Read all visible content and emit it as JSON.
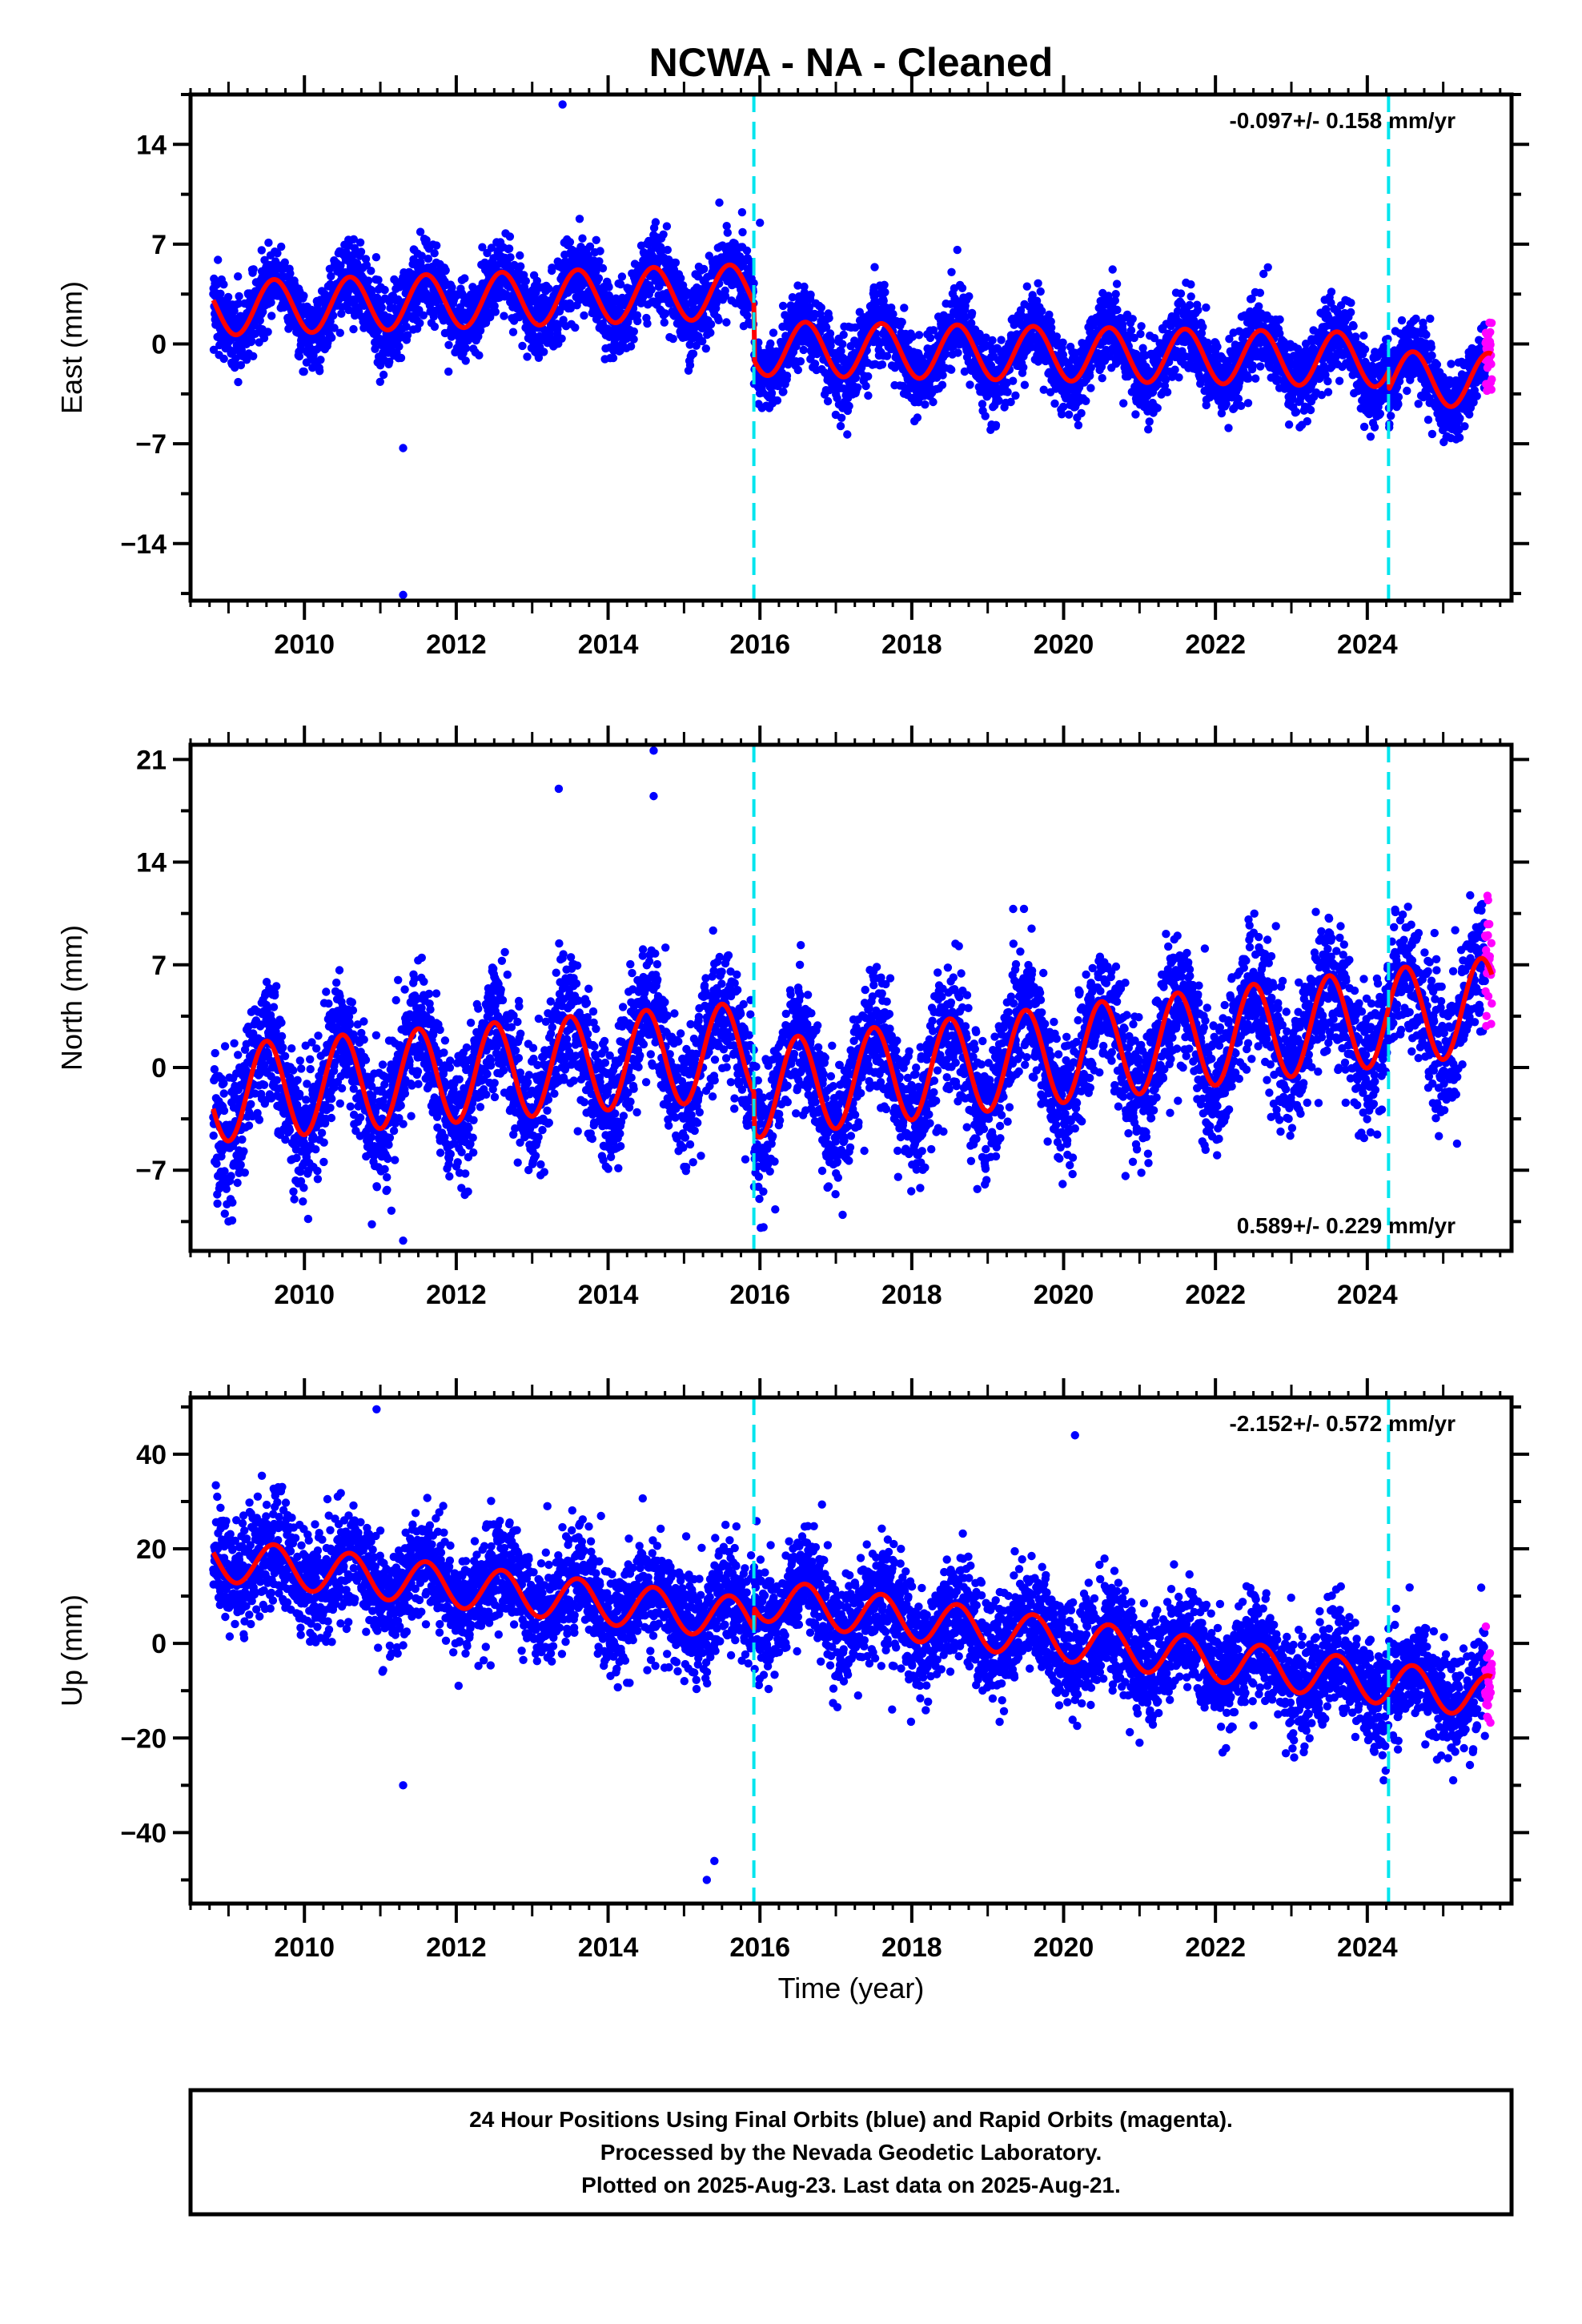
{
  "title": "NCWA  - NA - Cleaned",
  "xlabel": "Time (year)",
  "footer": {
    "lines": [
      "24 Hour Positions Using Final Orbits (blue) and Rapid Orbits (magenta).",
      "Processed by the Nevada Geodetic Laboratory.",
      "Plotted on 2025-Aug-23. Last data on 2025-Aug-21."
    ]
  },
  "colors": {
    "final": "#0000ff",
    "rapid": "#ff00ff",
    "model": "#ff0000",
    "break": "#00e5ee"
  },
  "chart_data": [
    {
      "type": "scatter",
      "name": "east",
      "ylabel": "East (mm)",
      "rate": "-0.097+/- 0.158 mm/yr",
      "rate_position": "top-right",
      "xlim": [
        2008.5,
        2025.9
      ],
      "ylim": [
        -18,
        17.5
      ],
      "xticks": [
        2010,
        2012,
        2014,
        2016,
        2018,
        2020,
        2022,
        2024
      ],
      "xtick_labels": [
        "2010",
        "2012",
        "2014",
        "2016",
        "2018",
        "2020",
        "2022",
        "2024"
      ],
      "yticks": [
        -14,
        -7,
        0,
        7,
        14
      ],
      "ytick_labels": [
        "−14",
        "−7",
        "0",
        "7",
        "14"
      ],
      "breaks": [
        2015.92,
        2024.28
      ],
      "data_start": 2008.8,
      "data_end": 2025.64,
      "rapid_start": 2025.55,
      "model": {
        "pre": {
          "offset": 3.7,
          "slope": 0.17,
          "amp": 1.9,
          "phase": 2025.6
        },
        "post": {
          "offset": -0.3,
          "slope": -0.097,
          "amp": 1.9,
          "phase": 2025.6
        },
        "steps": [
          [
            2024.28,
            -1.3
          ]
        ]
      },
      "noise": 1.35,
      "outliers": [
        [
          2013.4,
          16.8
        ],
        [
          2011.3,
          -17.6
        ],
        [
          2011.3,
          -7.3
        ],
        [
          2016.0,
          8.5
        ],
        [
          2018.6,
          6.6
        ]
      ]
    },
    {
      "type": "scatter",
      "name": "north",
      "ylabel": "North (mm)",
      "rate": "0.589+/- 0.229 mm/yr",
      "rate_position": "bottom-right",
      "xlim": [
        2008.5,
        2025.9
      ],
      "ylim": [
        -12.5,
        22
      ],
      "xticks": [
        2010,
        2012,
        2014,
        2016,
        2018,
        2020,
        2022,
        2024
      ],
      "xtick_labels": [
        "2010",
        "2012",
        "2014",
        "2016",
        "2018",
        "2020",
        "2022",
        "2024"
      ],
      "yticks": [
        -7,
        0,
        7,
        14,
        21
      ],
      "ytick_labels": [
        "−7",
        "0",
        "7",
        "14",
        "21"
      ],
      "breaks": [
        2015.92,
        2024.28
      ],
      "data_start": 2008.8,
      "data_end": 2025.64,
      "rapid_start": 2025.55,
      "model": {
        "pre": {
          "offset": 1.2,
          "slope": 0.42,
          "amp": 3.3,
          "phase": 2025.5
        },
        "post": {
          "offset": -1.5,
          "slope": 0.589,
          "amp": 3.3,
          "phase": 2025.5
        },
        "steps": []
      },
      "noise": 2.2,
      "outliers": [
        [
          2014.6,
          21.6
        ],
        [
          2011.3,
          -11.8
        ],
        [
          2013.35,
          19.0
        ],
        [
          2014.6,
          18.5
        ],
        [
          2009.0,
          -10.5
        ]
      ]
    },
    {
      "type": "scatter",
      "name": "up",
      "ylabel": "Up (mm)",
      "rate": "-2.152+/- 0.572 mm/yr",
      "rate_position": "top-right",
      "xlim": [
        2008.5,
        2025.9
      ],
      "ylim": [
        -55,
        52
      ],
      "xticks": [
        2010,
        2012,
        2014,
        2016,
        2018,
        2020,
        2022,
        2024
      ],
      "xtick_labels": [
        "2010",
        "2012",
        "2014",
        "2016",
        "2018",
        "2020",
        "2022",
        "2024"
      ],
      "yticks": [
        -40,
        -20,
        0,
        20,
        40
      ],
      "ytick_labels": [
        "−40",
        "−20",
        "0",
        "20",
        "40"
      ],
      "breaks": [
        2015.92,
        2024.28
      ],
      "data_start": 2008.8,
      "data_end": 2025.64,
      "rapid_start": 2025.55,
      "model": {
        "pre": {
          "offset": 5.0,
          "slope": -1.8,
          "amp": 4.5,
          "phase": 2025.6
        },
        "post": {
          "offset": 9.5,
          "slope": -2.152,
          "amp": 4.5,
          "phase": 2025.6
        },
        "steps": []
      },
      "noise": 5.5,
      "outliers": [
        [
          2010.95,
          49.5
        ],
        [
          2020.15,
          44.0
        ],
        [
          2013.2,
          29.0
        ],
        [
          2015.3,
          -50.0
        ],
        [
          2011.3,
          -30.0
        ],
        [
          2015.4,
          -46.0
        ],
        [
          2021.0,
          -21.0
        ]
      ]
    }
  ]
}
